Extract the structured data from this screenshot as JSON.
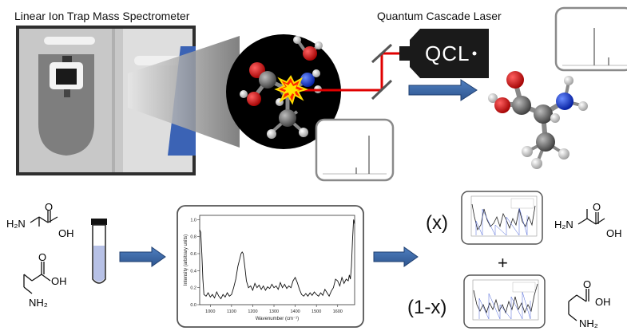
{
  "labels": {
    "instrument": "Linear Ion Trap Mass Spectrometer",
    "laser": "Quantum Cascade Laser",
    "laser_box": "QCL"
  },
  "mixture": {
    "x_label": "(x)",
    "plus": "+",
    "one_minus_x_label": "(1-x)"
  },
  "molecules": {
    "alanine": {
      "amine": "H₂N",
      "acid": "OH",
      "carbonyl": "O"
    },
    "beta_alanine": {
      "acid": "OH",
      "carbonyl": "O",
      "amine": "NH₂"
    }
  },
  "chart_data": {
    "type": "line",
    "title": "",
    "xlabel": "Wavenumber (cm⁻¹)",
    "ylabel": "Intensity (arbitrary units)",
    "xlim": [
      950,
      1680
    ],
    "ylim": [
      0.0,
      1.05
    ],
    "x_ticks": [
      1000,
      1100,
      1200,
      1300,
      1400,
      1500,
      1600
    ],
    "y_ticks": [
      0.0,
      0.2,
      0.4,
      0.6,
      0.8,
      1.0
    ],
    "series": [
      {
        "x": [
          950,
          955,
          960,
          965,
          970,
          980,
          990,
          1000,
          1010,
          1020,
          1030,
          1040,
          1050,
          1060,
          1070,
          1080,
          1090,
          1100,
          1110,
          1120,
          1130,
          1140,
          1145,
          1150,
          1155,
          1160,
          1165,
          1170,
          1180,
          1190,
          1200,
          1210,
          1220,
          1230,
          1240,
          1250,
          1260,
          1270,
          1280,
          1290,
          1300,
          1310,
          1320,
          1330,
          1340,
          1350,
          1360,
          1370,
          1380,
          1390,
          1400,
          1410,
          1420,
          1430,
          1440,
          1450,
          1460,
          1470,
          1480,
          1490,
          1500,
          1510,
          1520,
          1530,
          1540,
          1550,
          1560,
          1570,
          1580,
          1590,
          1600,
          1610,
          1620,
          1630,
          1640,
          1650,
          1655,
          1660,
          1665,
          1670,
          1675,
          1680
        ],
        "values": [
          0.88,
          0.85,
          0.6,
          0.3,
          0.12,
          0.1,
          0.14,
          0.09,
          0.12,
          0.08,
          0.15,
          0.1,
          0.07,
          0.12,
          0.09,
          0.14,
          0.1,
          0.12,
          0.2,
          0.3,
          0.45,
          0.55,
          0.6,
          0.62,
          0.6,
          0.5,
          0.4,
          0.28,
          0.2,
          0.22,
          0.17,
          0.25,
          0.2,
          0.23,
          0.18,
          0.22,
          0.17,
          0.21,
          0.19,
          0.24,
          0.2,
          0.22,
          0.18,
          0.26,
          0.2,
          0.24,
          0.19,
          0.22,
          0.2,
          0.28,
          0.32,
          0.26,
          0.18,
          0.12,
          0.1,
          0.13,
          0.1,
          0.14,
          0.11,
          0.15,
          0.12,
          0.1,
          0.14,
          0.11,
          0.18,
          0.14,
          0.1,
          0.16,
          0.2,
          0.3,
          0.28,
          0.22,
          0.32,
          0.25,
          0.3,
          0.28,
          0.35,
          0.3,
          0.45,
          0.75,
          1.0,
          0.95
        ]
      }
    ],
    "grid": false,
    "color": "#111111"
  }
}
